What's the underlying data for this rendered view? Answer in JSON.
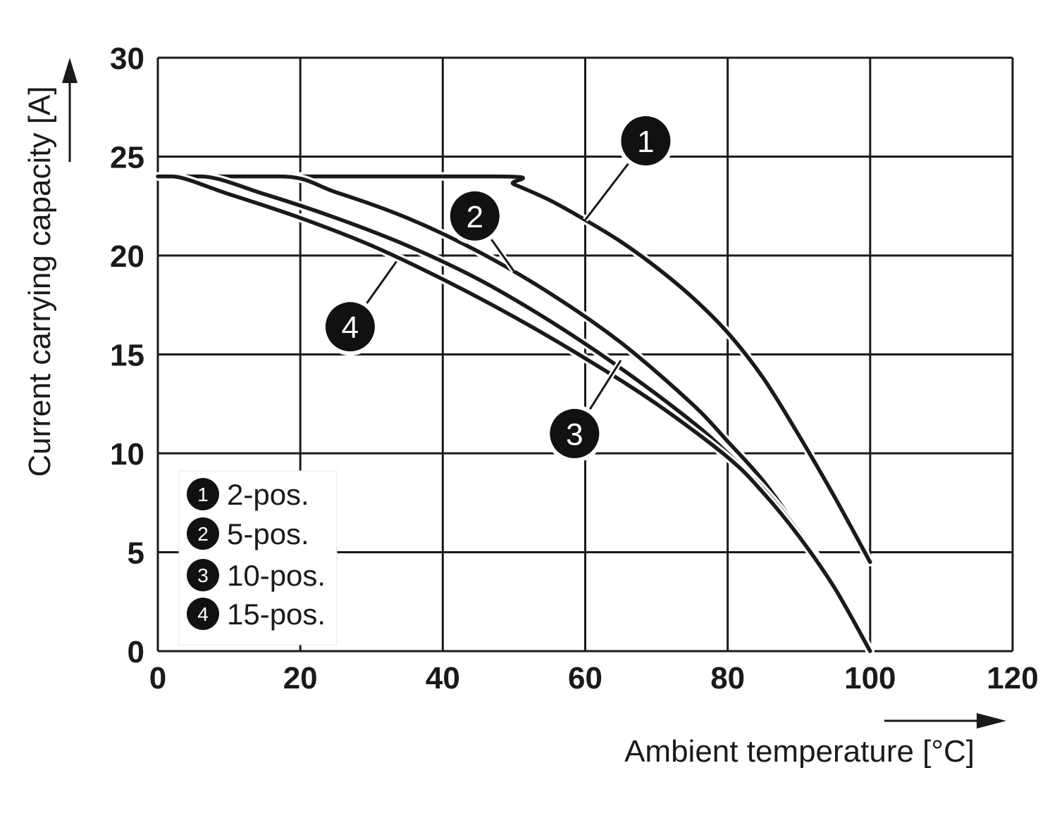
{
  "chart_data": {
    "type": "line",
    "xlabel": "Ambient temperature [°C]",
    "ylabel": "Current carrying capacity [A]",
    "xlim": [
      0,
      120
    ],
    "ylim": [
      0,
      30
    ],
    "xticks": [
      0,
      20,
      40,
      60,
      80,
      100,
      120
    ],
    "yticks": [
      0,
      5,
      10,
      15,
      20,
      25,
      30
    ],
    "x_tick_labels": [
      "0",
      "20",
      "40",
      "60",
      "80",
      "100",
      "120"
    ],
    "y_tick_labels": [
      "0",
      "5",
      "10",
      "15",
      "20",
      "25",
      "30"
    ],
    "grid": true,
    "legend_position": "bottom-left",
    "series": [
      {
        "marker": "1",
        "name": "2-pos.",
        "x": [
          0,
          47,
          50,
          55,
          60,
          65,
          70,
          75,
          80,
          85,
          90,
          95,
          100
        ],
        "y": [
          24,
          24,
          23.6,
          22.8,
          21.8,
          20.7,
          19.4,
          17.9,
          16.1,
          13.8,
          10.9,
          7.8,
          4.5
        ]
      },
      {
        "marker": "2",
        "name": "5-pos.",
        "x": [
          0,
          17,
          25,
          35,
          45,
          55,
          65,
          75,
          80,
          85,
          90,
          95,
          100
        ],
        "y": [
          24,
          24,
          23.2,
          21.9,
          20.2,
          18.1,
          15.6,
          12.5,
          10.6,
          8.6,
          6.1,
          3.4,
          0
        ]
      },
      {
        "marker": "3",
        "name": "10-pos.",
        "x": [
          0,
          6,
          15,
          25,
          35,
          45,
          55,
          65,
          75,
          80,
          85,
          90,
          95,
          100
        ],
        "y": [
          24,
          24,
          23.1,
          21.9,
          20.5,
          18.8,
          16.7,
          14.3,
          11.6,
          10.0,
          8.2,
          6.0,
          3.3,
          0
        ]
      },
      {
        "marker": "4",
        "name": "15-pos.",
        "x": [
          0,
          2,
          10,
          20,
          30,
          40,
          50,
          60,
          70,
          80,
          85,
          90,
          95,
          100
        ],
        "y": [
          24,
          24,
          23.1,
          21.9,
          20.5,
          18.8,
          16.9,
          14.8,
          12.5,
          9.8,
          8.0,
          5.8,
          3.2,
          0
        ]
      }
    ],
    "markers": [
      {
        "label": "1",
        "at": [
          68.5,
          25.8
        ],
        "points_to": [
          60,
          21.8
        ]
      },
      {
        "label": "2",
        "at": [
          44.5,
          22.0
        ],
        "points_to": [
          50,
          19.2
        ]
      },
      {
        "label": "3",
        "at": [
          58.5,
          11.0
        ],
        "points_to": [
          65,
          14.7
        ]
      },
      {
        "label": "4",
        "at": [
          27,
          16.4
        ],
        "points_to": [
          33.5,
          19.7
        ]
      }
    ]
  }
}
